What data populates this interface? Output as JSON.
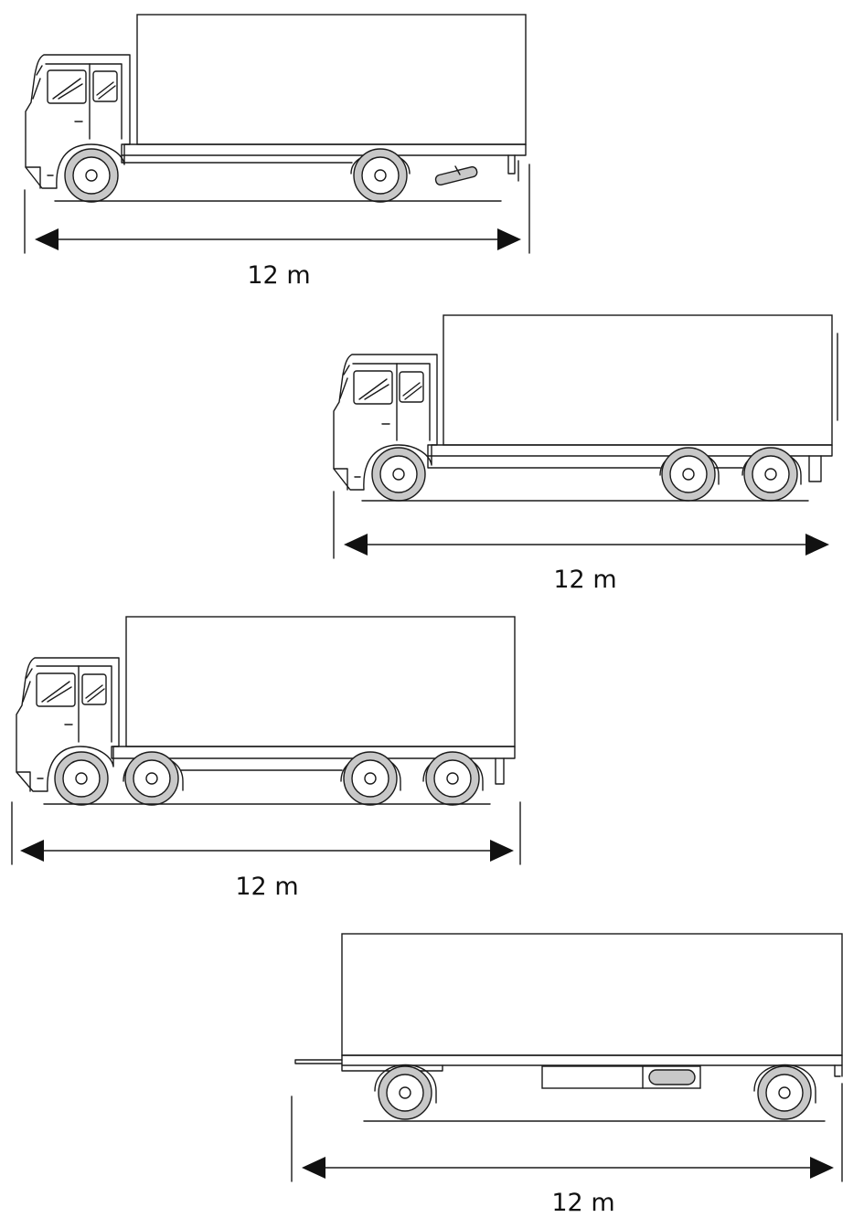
{
  "vehicles": [
    {
      "type": "rigid-truck-2-axle",
      "length_label": "12 m"
    },
    {
      "type": "rigid-truck-3-axle",
      "length_label": "12 m"
    },
    {
      "type": "rigid-truck-4-axle",
      "length_label": "12 m"
    },
    {
      "type": "drawbar-trailer",
      "length_label": "12 m"
    }
  ]
}
